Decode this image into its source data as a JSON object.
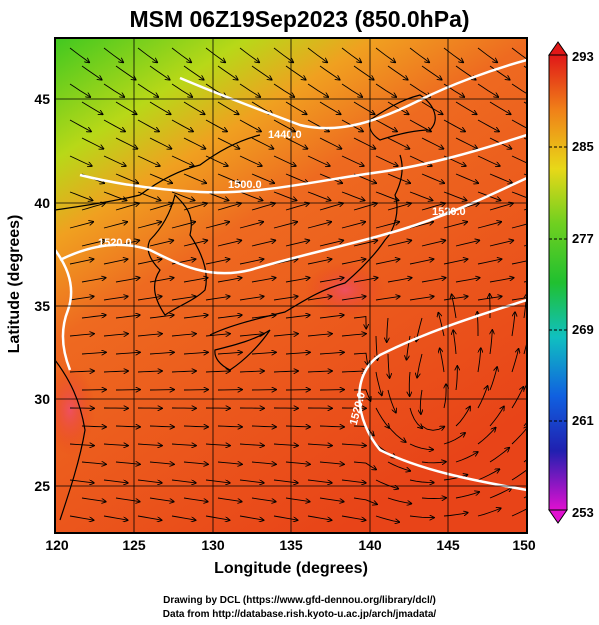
{
  "title": "MSM 06Z19Sep2023 (850.0hPa)",
  "x_axis": {
    "label": "Longitude (degrees)",
    "ticks": [
      "120",
      "125",
      "130",
      "135",
      "140",
      "145",
      "150"
    ]
  },
  "y_axis": {
    "label": "Latitude  (degrees)",
    "ticks": [
      "25",
      "30",
      "35",
      "40",
      "45"
    ]
  },
  "colorbar": {
    "ticks": [
      "293",
      "285",
      "277",
      "269",
      "261",
      "253"
    ]
  },
  "contours": [
    "1440.0",
    "1500.0",
    "1520.0",
    "1520.0",
    "1520.0"
  ],
  "credits": {
    "line1": "Drawing by DCL (https://www.gfd-dennou.org/library/dcl/)",
    "line2": "Data from http://database.rish.kyoto-u.ac.jp/arch/jmadata/"
  },
  "colors": {
    "warm": "#e8401a",
    "mid": "#f07a20",
    "cool": "#58d020",
    "frame": "#000000",
    "contour": "#ffffff"
  }
}
